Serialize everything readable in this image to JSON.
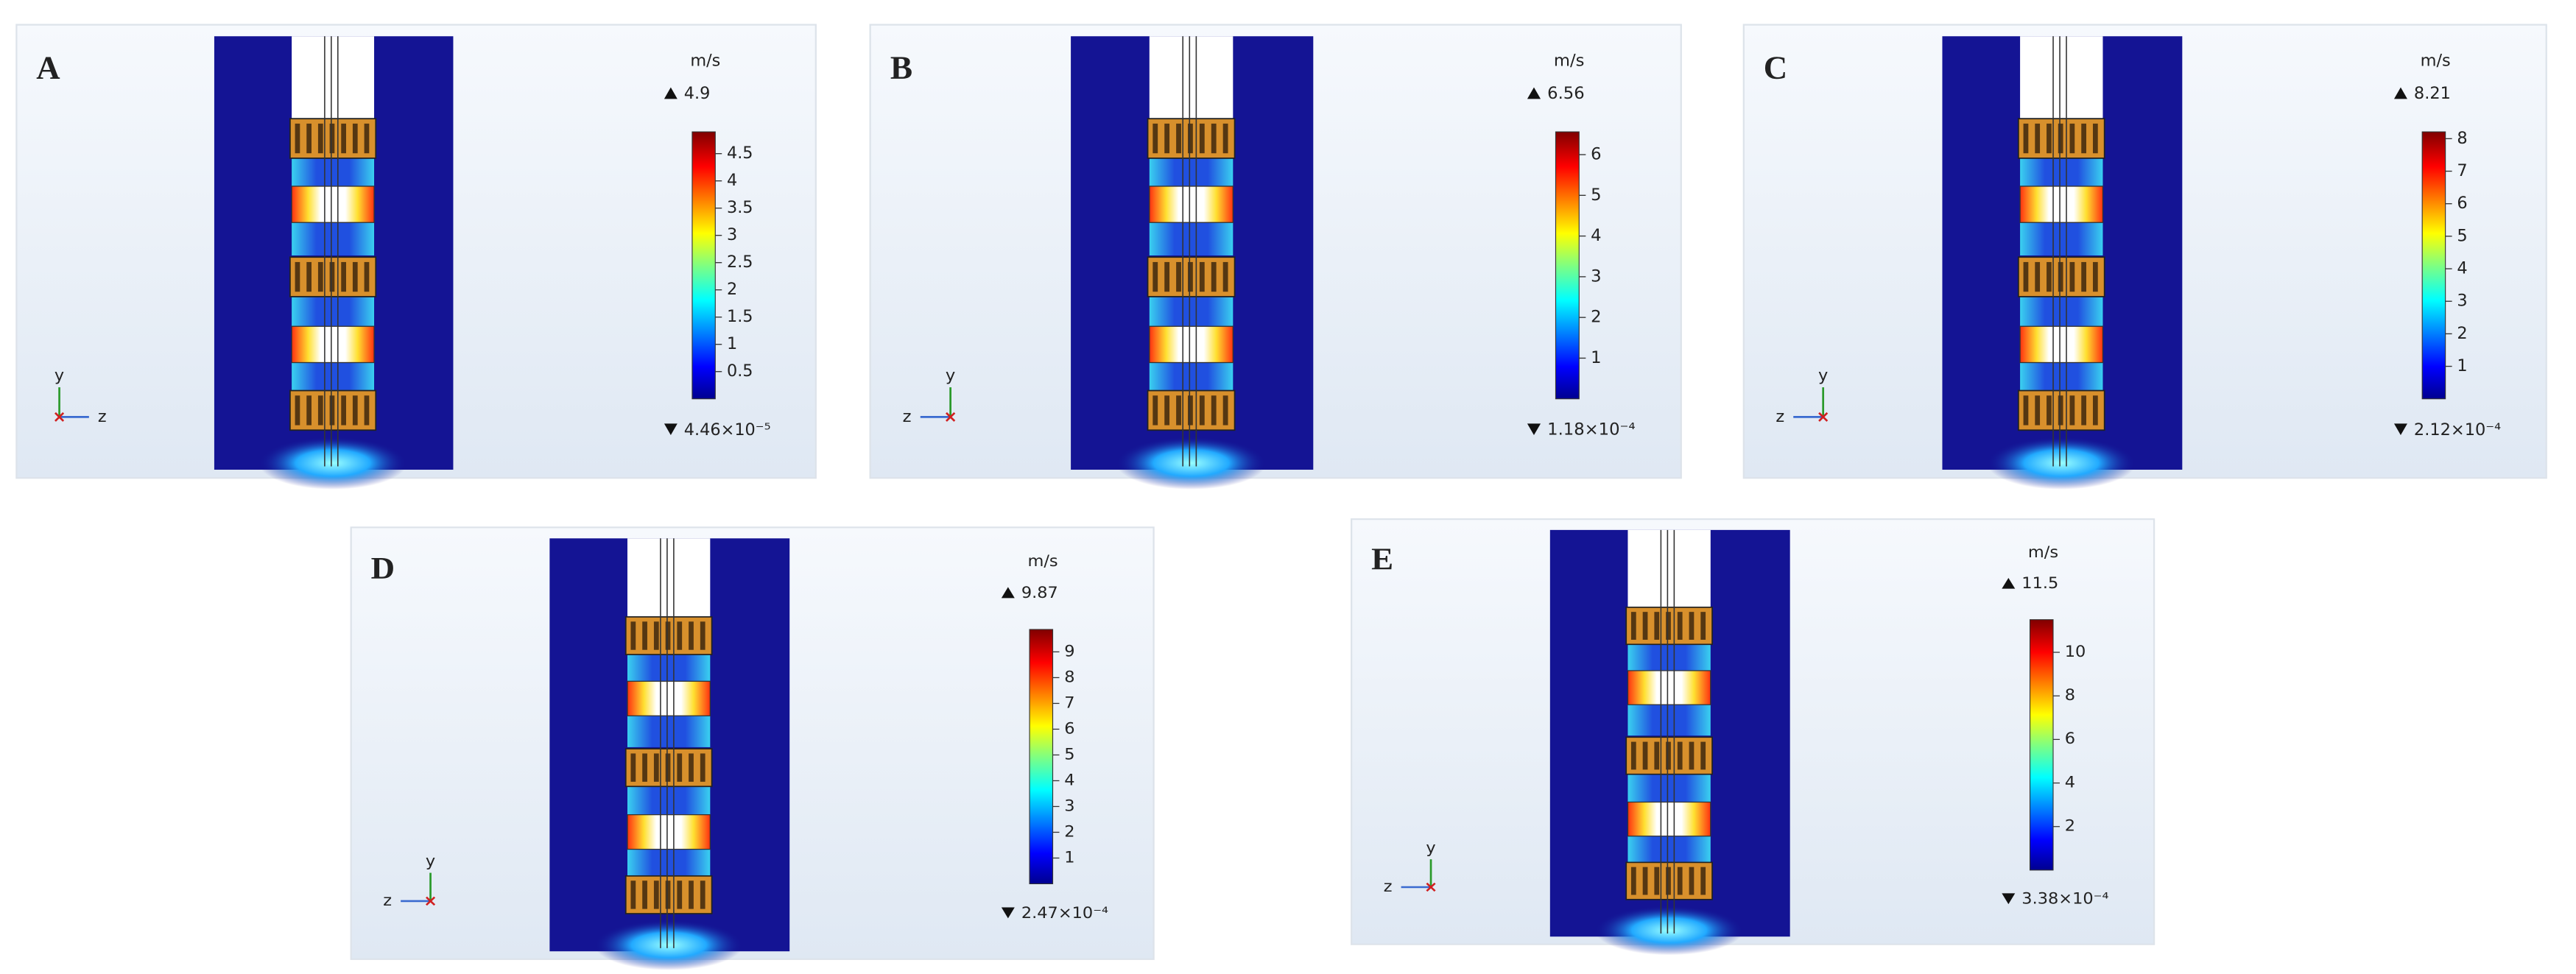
{
  "panels": [
    {
      "label": "A",
      "unit": "m/s",
      "max": 4.9,
      "min": {
        "value": 4.46e-05,
        "label": "4.46×10⁻⁵"
      },
      "ticks": [
        0.5,
        1,
        1.5,
        2,
        2.5,
        3,
        3.5,
        4,
        4.5
      ],
      "axis_labels": [
        "y",
        "z"
      ]
    },
    {
      "label": "B",
      "unit": "m/s",
      "max": 6.56,
      "min": {
        "value": 0.000118,
        "label": "1.18×10⁻⁴"
      },
      "ticks": [
        1,
        2,
        3,
        4,
        5,
        6
      ],
      "axis_labels": [
        "y",
        "z"
      ]
    },
    {
      "label": "C",
      "unit": "m/s",
      "max": 8.21,
      "min": {
        "value": 0.000212,
        "label": "2.12×10⁻⁴"
      },
      "ticks": [
        1,
        2,
        3,
        4,
        5,
        6,
        7,
        8
      ],
      "axis_labels": [
        "y",
        "z"
      ]
    },
    {
      "label": "D",
      "unit": "m/s",
      "max": 9.87,
      "min": {
        "value": 0.000247,
        "label": "2.47×10⁻⁴"
      },
      "ticks": [
        1,
        2,
        3,
        4,
        5,
        6,
        7,
        8,
        9
      ],
      "axis_labels": [
        "y",
        "z"
      ]
    },
    {
      "label": "E",
      "unit": "m/s",
      "max": 11.5,
      "min": {
        "value": 0.000338,
        "label": "3.38×10⁻⁴"
      },
      "ticks": [
        2,
        4,
        6,
        8,
        10
      ],
      "axis_labels": [
        "y",
        "z"
      ]
    }
  ]
}
